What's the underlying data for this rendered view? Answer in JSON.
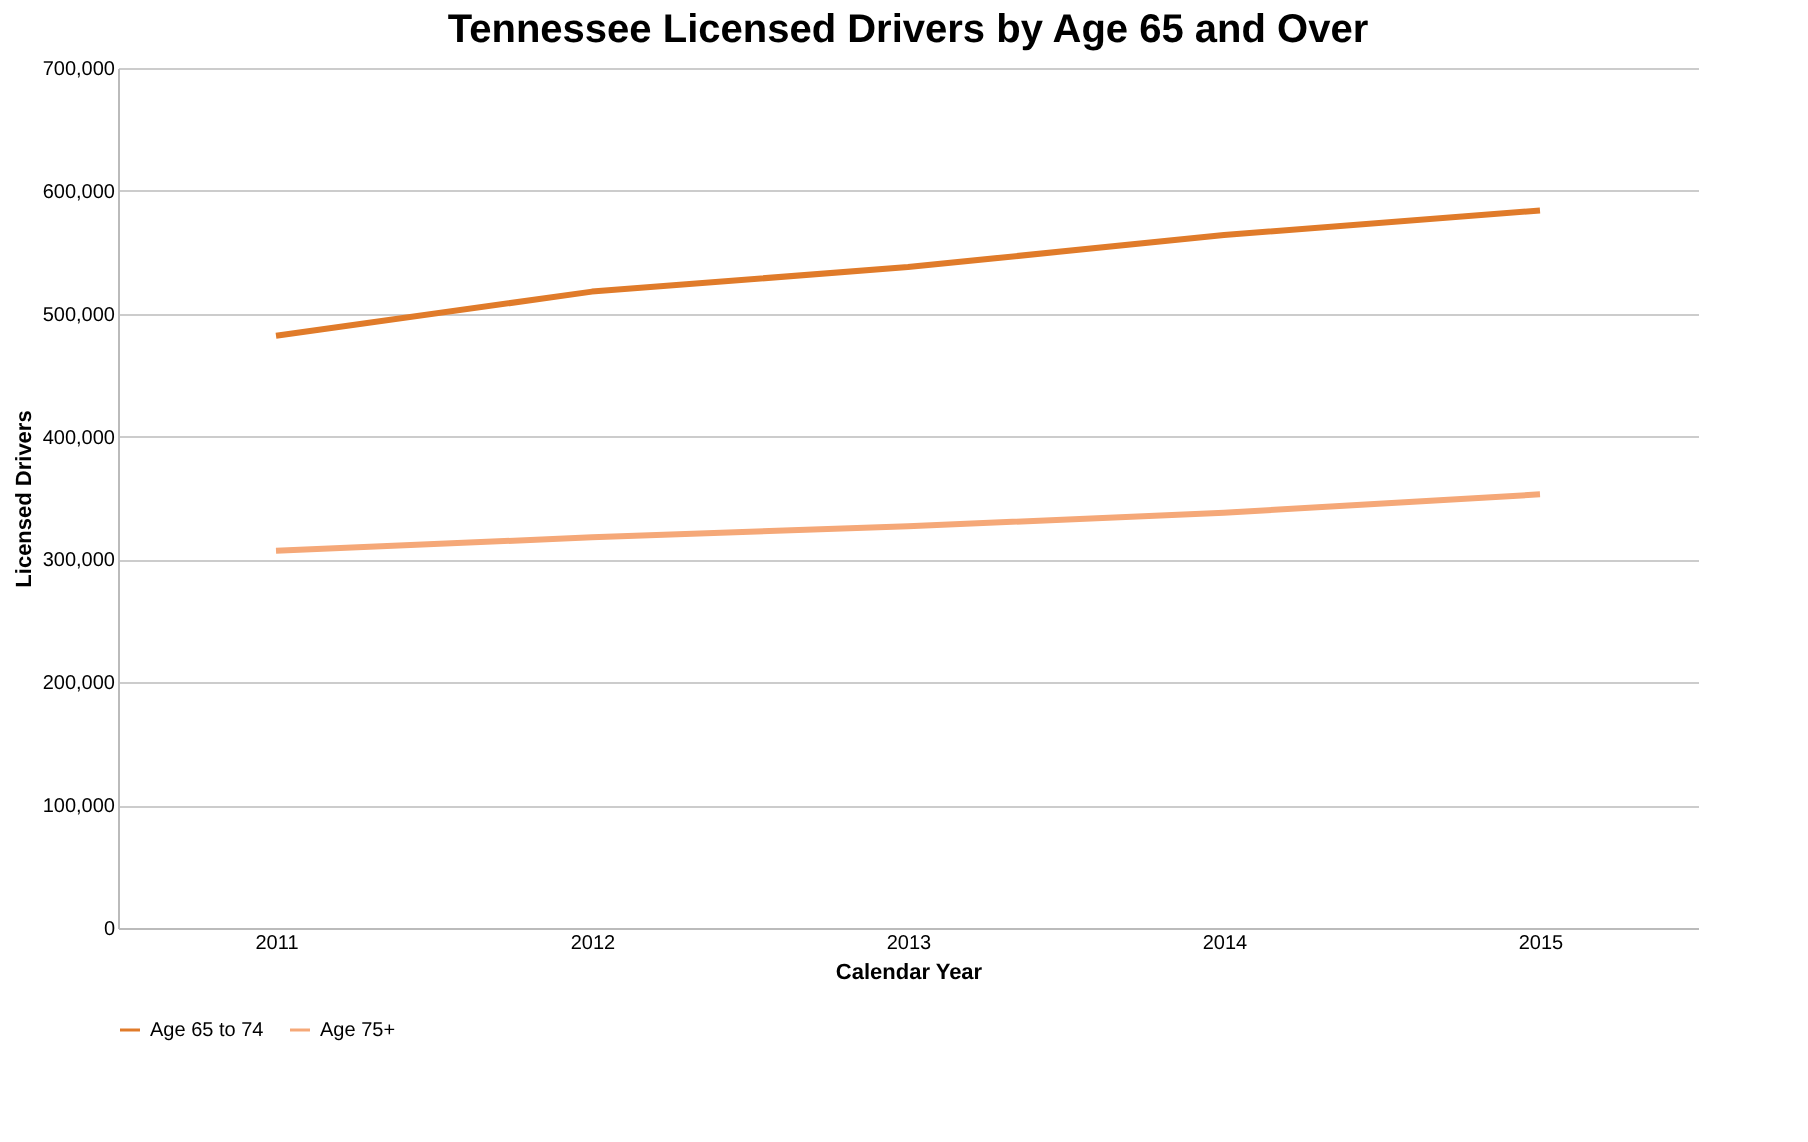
{
  "chart_data": {
    "type": "line",
    "title": "Tennessee Licensed Drivers by Age 65 and Over",
    "xlabel": "Calendar Year",
    "ylabel": "Licensed Drivers",
    "categories": [
      "2011",
      "2012",
      "2013",
      "2014",
      "2015"
    ],
    "series": [
      {
        "name": "Age 65 to 74",
        "color": "#e07b2a",
        "values": [
          482000,
          518000,
          538000,
          564000,
          584000
        ]
      },
      {
        "name": "Age 75+",
        "color": "#f5a878",
        "values": [
          307000,
          318000,
          327000,
          338000,
          353000
        ]
      }
    ],
    "ylim": [
      0,
      700000
    ],
    "yticks": [
      {
        "value": 0,
        "label": "0"
      },
      {
        "value": 100000,
        "label": "100,000"
      },
      {
        "value": 200000,
        "label": "200,000"
      },
      {
        "value": 300000,
        "label": "300,000"
      },
      {
        "value": 400000,
        "label": "400,000"
      },
      {
        "value": 500000,
        "label": "500,000"
      },
      {
        "value": 600000,
        "label": "600,000"
      },
      {
        "value": 700000,
        "label": "700,000"
      }
    ],
    "grid": "y",
    "legend": "bottom",
    "marker": "none",
    "line_style": "solid"
  }
}
